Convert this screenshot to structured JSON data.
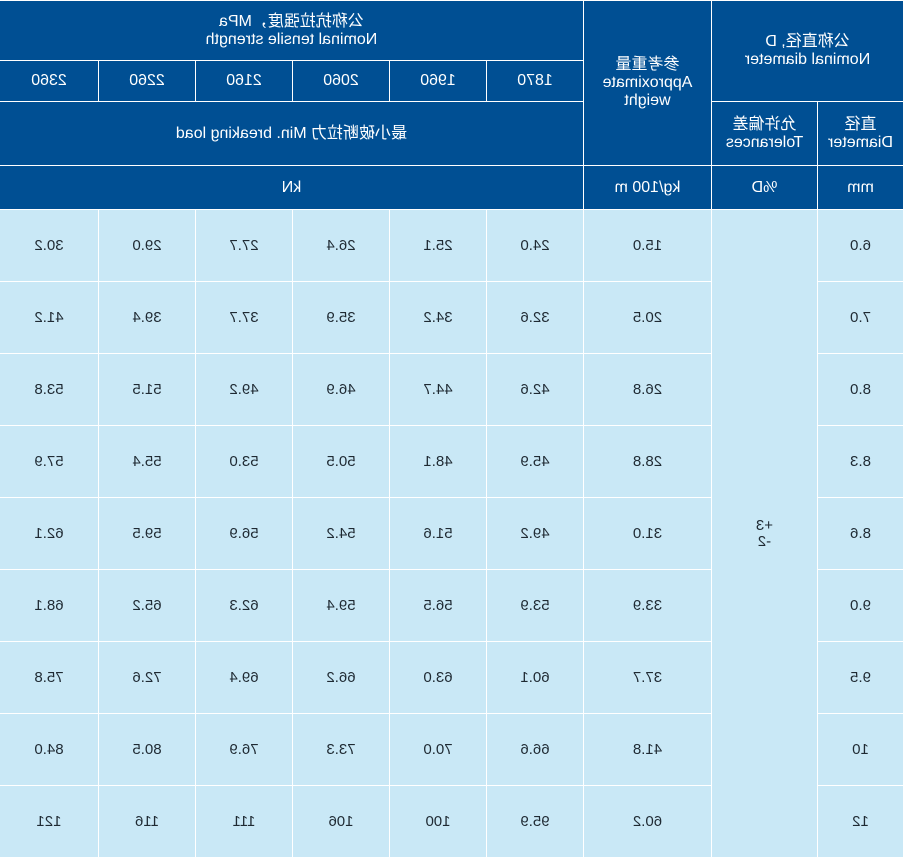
{
  "header": {
    "nominal_diameter": {
      "cn": "公称直径, D",
      "en": "Nominal diameter"
    },
    "diameter": {
      "cn": "直径",
      "en": "Diameter"
    },
    "tolerances": {
      "cn": "允许偏差",
      "en": "Tolerances"
    },
    "approx_weight": {
      "cn": "参考重量",
      "en1": "Approximate",
      "en2": "weight"
    },
    "tensile": {
      "cn": "公称抗拉强度，MPa",
      "en": "Nominal tensile strength"
    },
    "grades": [
      "1870",
      "1960",
      "2060",
      "2160",
      "2260",
      "2360"
    ],
    "breaking_load": "最小破断拉力  Min. breaking load"
  },
  "units": {
    "diameter": "mm",
    "tolerance": "%D",
    "weight": "kg/100 m",
    "load": "kN"
  },
  "tolerance_value": {
    "plus": "+3",
    "minus": "-2"
  },
  "rows": [
    {
      "d": "6.0",
      "w": "15.0",
      "loads": [
        "24.0",
        "25.1",
        "26.4",
        "27.7",
        "29.0",
        "30.2"
      ]
    },
    {
      "d": "7.0",
      "w": "20.5",
      "loads": [
        "32.6",
        "34.2",
        "35.9",
        "37.7",
        "39.4",
        "41.2"
      ]
    },
    {
      "d": "8.0",
      "w": "26.8",
      "loads": [
        "42.6",
        "44.7",
        "46.9",
        "49.2",
        "51.5",
        "53.8"
      ]
    },
    {
      "d": "8.3",
      "w": "28.8",
      "loads": [
        "45.9",
        "48.1",
        "50.5",
        "53.0",
        "55.4",
        "57.9"
      ]
    },
    {
      "d": "8.6",
      "w": "31.0",
      "loads": [
        "49.2",
        "51.6",
        "54.2",
        "56.9",
        "59.5",
        "62.1"
      ]
    },
    {
      "d": "9.0",
      "w": "33.9",
      "loads": [
        "53.9",
        "56.5",
        "59.4",
        "62.3",
        "65.2",
        "68.1"
      ]
    },
    {
      "d": "9.5",
      "w": "37.7",
      "loads": [
        "60.1",
        "63.0",
        "66.2",
        "69.4",
        "72.6",
        "75.8"
      ]
    },
    {
      "d": "10",
      "w": "41.8",
      "loads": [
        "66.6",
        "70.0",
        "73.3",
        "76.9",
        "80.5",
        "84.0"
      ]
    },
    {
      "d": "12",
      "w": "60.2",
      "loads": [
        "95.9",
        "100",
        "106",
        "111",
        "116",
        "121"
      ]
    }
  ]
}
